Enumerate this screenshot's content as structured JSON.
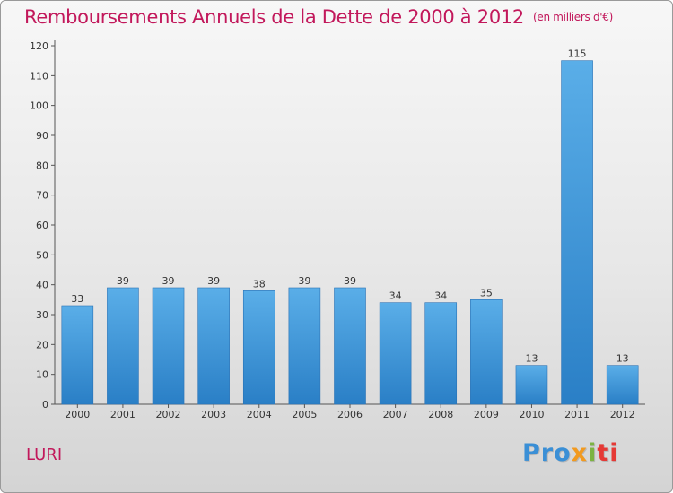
{
  "title": "Remboursements Annuels de la Dette de 2000 à 2012",
  "unit": "(en milliers d'€)",
  "commune": "LURI",
  "logo": {
    "p1": "Pro",
    "p2": "x",
    "p3": "i",
    "p4": "ti"
  },
  "colors": {
    "title": "#c2185b",
    "bar_top": "#5aaee8",
    "bar_bottom": "#2a7fc6"
  },
  "chart_data": {
    "type": "bar",
    "title": "Remboursements Annuels de la Dette de 2000 à 2012",
    "xlabel": "",
    "ylabel": "",
    "ylim": [
      0,
      120
    ],
    "yticks": [
      0,
      10,
      20,
      30,
      40,
      50,
      60,
      70,
      80,
      90,
      100,
      110,
      120
    ],
    "grid": false,
    "categories": [
      "2000",
      "2001",
      "2002",
      "2003",
      "2004",
      "2005",
      "2006",
      "2007",
      "2008",
      "2009",
      "2010",
      "2011",
      "2012"
    ],
    "values": [
      33,
      39,
      39,
      39,
      38,
      39,
      39,
      34,
      34,
      35,
      13,
      115,
      13
    ]
  }
}
